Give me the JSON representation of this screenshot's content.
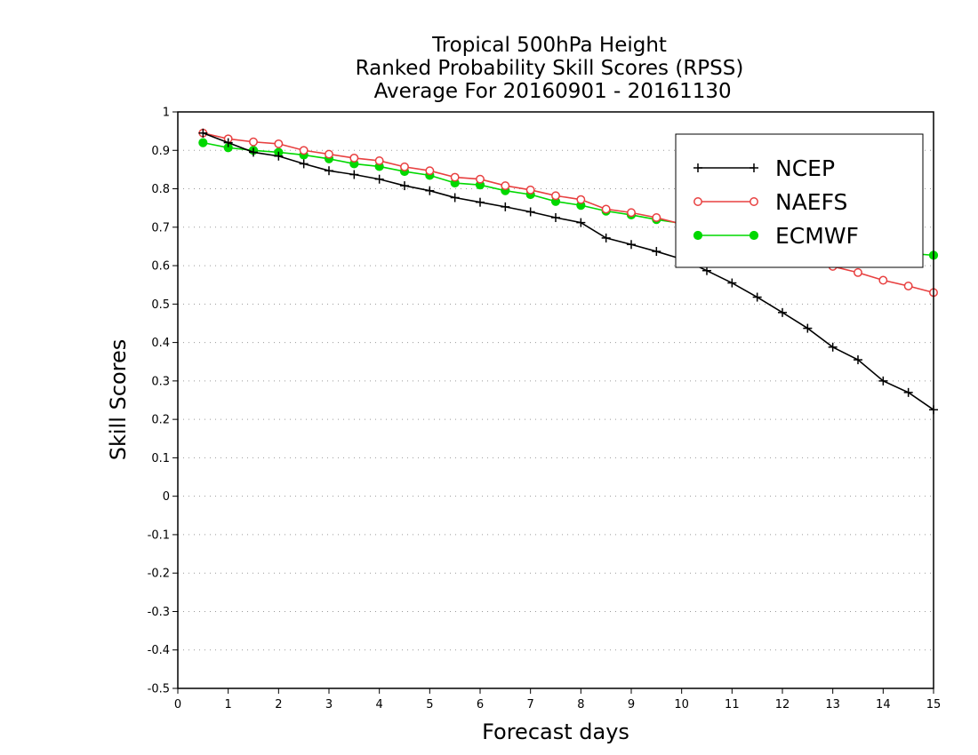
{
  "chart_data": {
    "type": "line",
    "title_lines": [
      "Tropical 500hPa Height",
      "Ranked Probability Skill Scores (RPSS)",
      " Average For 20160901 - 20161130"
    ],
    "xlabel": "Forecast days",
    "ylabel": "Skill Scores",
    "xlim": [
      0,
      15
    ],
    "ylim": [
      -0.5,
      1
    ],
    "xticks": [
      "0",
      "1",
      "2",
      "3",
      "4",
      "5",
      "6",
      "7",
      "8",
      "9",
      "10",
      "11",
      "12",
      "13",
      "14",
      "15"
    ],
    "yticks": [
      "-0.5",
      "-0.4",
      "-0.3",
      "-0.2",
      "-0.1",
      "0",
      "0.1",
      "0.2",
      "0.3",
      "0.4",
      "0.5",
      "0.6",
      "0.7",
      "0.8",
      "0.9",
      "1"
    ],
    "grid": "horizontal dotted",
    "legend_position": "top-right",
    "x": [
      0.5,
      1,
      1.5,
      2,
      2.5,
      3,
      3.5,
      4,
      4.5,
      5,
      5.5,
      6,
      6.5,
      7,
      7.5,
      8,
      8.5,
      9,
      9.5,
      10,
      10.5,
      11,
      11.5,
      12,
      12.5,
      13,
      13.5,
      14,
      14.5,
      15
    ],
    "series": [
      {
        "name": "NCEP",
        "color": "#000000",
        "marker": "plus",
        "values": [
          0.945,
          0.92,
          0.895,
          0.885,
          0.865,
          0.847,
          0.837,
          0.825,
          0.808,
          0.795,
          0.777,
          0.765,
          0.753,
          0.74,
          0.725,
          0.712,
          0.672,
          0.655,
          0.637,
          0.617,
          0.587,
          0.555,
          0.518,
          0.478,
          0.437,
          0.388,
          0.355,
          0.3,
          0.27,
          0.225
        ]
      },
      {
        "name": "NAEFS",
        "color": "#e84040",
        "marker": "open-circle",
        "values": [
          0.945,
          0.93,
          0.922,
          0.917,
          0.9,
          0.89,
          0.88,
          0.873,
          0.857,
          0.847,
          0.83,
          0.825,
          0.808,
          0.797,
          0.782,
          0.772,
          0.747,
          0.738,
          0.725,
          0.708,
          0.69,
          0.67,
          0.655,
          0.64,
          0.622,
          0.598,
          0.582,
          0.562,
          0.547,
          0.53
        ]
      },
      {
        "name": "ECMWF",
        "color": "#00d800",
        "marker": "filled-circle",
        "values": [
          0.92,
          0.907,
          0.9,
          0.895,
          0.888,
          0.878,
          0.865,
          0.858,
          0.845,
          0.835,
          0.815,
          0.81,
          0.795,
          0.785,
          0.767,
          0.757,
          0.742,
          0.732,
          0.72,
          0.71,
          0.705,
          0.695,
          0.69,
          0.68,
          0.665,
          0.655,
          0.645,
          0.64,
          0.632,
          0.627
        ]
      }
    ]
  }
}
